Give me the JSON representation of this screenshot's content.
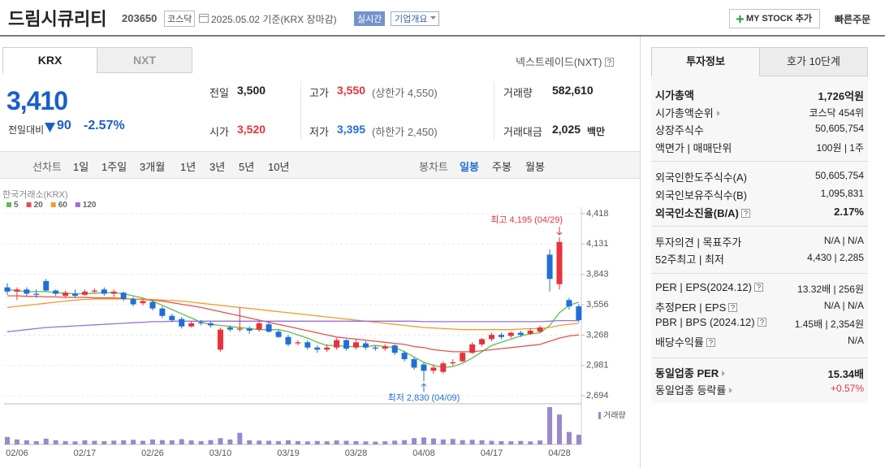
{
  "header": {
    "title": "드림시큐리티",
    "code": "203650",
    "market": "코스닥",
    "date": "2025.05.02",
    "basis": "기준(KRX 장마감)",
    "realtime": "실시간",
    "company_info": "기업개요",
    "mystock": "MY STOCK 추가",
    "quick_order": "빠른주문"
  },
  "price_panel": {
    "tabs": [
      "KRX",
      "NXT"
    ],
    "nxt_link": "넥스트레이드(NXT)",
    "price": "3,410",
    "change_label": "전일대비",
    "change": "90",
    "change_rate": "-2.57%",
    "stats": {
      "prev_close": {
        "label": "전일",
        "value": "3,500"
      },
      "high": {
        "label": "고가",
        "value": "3,550",
        "extra": "(상한가 4,550)"
      },
      "volume": {
        "label": "거래량",
        "value": "582,610"
      },
      "open": {
        "label": "시가",
        "value": "3,520"
      },
      "low": {
        "label": "저가",
        "value": "3,395",
        "extra": "(하한가 2,450)"
      },
      "amount": {
        "label": "거래대금",
        "value": "2,025",
        "unit": "백만"
      }
    }
  },
  "chart_toolbar": {
    "line_chart": "선차트",
    "line_periods": [
      "1일",
      "1주일",
      "3개월",
      "1년",
      "3년",
      "5년",
      "10년"
    ],
    "candle_chart": "봉차트",
    "candle_periods": [
      "일봉",
      "주봉",
      "월봉"
    ]
  },
  "chart_data": {
    "type": "candlestick",
    "exchange_label": "한국거래소(KRX)",
    "categories": [
      null,
      "02/06",
      null,
      null,
      null,
      null,
      null,
      null,
      "02/17",
      null,
      null,
      null,
      null,
      null,
      null,
      "02/26",
      null,
      null,
      null,
      null,
      null,
      null,
      "03/10",
      null,
      null,
      null,
      null,
      null,
      null,
      "03/19",
      null,
      null,
      null,
      null,
      null,
      null,
      "03/28",
      null,
      null,
      null,
      null,
      null,
      null,
      "04/08",
      null,
      null,
      null,
      null,
      null,
      null,
      "04/17",
      null,
      null,
      null,
      null,
      null,
      null,
      "04/28",
      null,
      null
    ],
    "open": [
      3720,
      3680,
      3700,
      3660,
      3780,
      3690,
      3640,
      3660,
      3650,
      3680,
      3700,
      3660,
      3670,
      3610,
      3570,
      3580,
      3520,
      3450,
      3420,
      3350,
      3390,
      3380,
      3130,
      3340,
      3320,
      3330,
      3320,
      3370,
      3300,
      3250,
      3190,
      3200,
      3150,
      3130,
      3150,
      3220,
      3150,
      3190,
      3150,
      3140,
      3170,
      3100,
      3040,
      2990,
      2930,
      2920,
      3000,
      3020,
      3100,
      3180,
      3230,
      3270,
      3260,
      3290,
      3280,
      3300,
      4030,
      3750,
      3600,
      3540
    ],
    "high": [
      3760,
      3720,
      3720,
      3700,
      3800,
      3700,
      3690,
      3700,
      3700,
      3710,
      3720,
      3700,
      3680,
      3630,
      3610,
      3600,
      3540,
      3470,
      3440,
      3400,
      3410,
      3400,
      3340,
      3360,
      3530,
      3350,
      3400,
      3390,
      3320,
      3270,
      3220,
      3220,
      3170,
      3180,
      3240,
      3230,
      3230,
      3210,
      3170,
      3180,
      3180,
      3120,
      3060,
      3010,
      2990,
      3020,
      3040,
      3110,
      3200,
      3240,
      3290,
      3290,
      3300,
      3310,
      3330,
      3360,
      4080,
      4195,
      3620,
      3560
    ],
    "low": [
      3650,
      3600,
      3640,
      3620,
      3680,
      3640,
      3620,
      3620,
      3640,
      3660,
      3640,
      3630,
      3590,
      3540,
      3550,
      3500,
      3430,
      3390,
      3330,
      3340,
      3360,
      3340,
      3110,
      3300,
      3300,
      3280,
      3300,
      3290,
      3240,
      3160,
      3170,
      3130,
      3100,
      3110,
      3130,
      3120,
      3130,
      3130,
      3120,
      3120,
      3080,
      3020,
      2940,
      2830,
      2900,
      2900,
      2980,
      3010,
      3090,
      3160,
      3210,
      3230,
      3240,
      3250,
      3270,
      3290,
      3680,
      3700,
      3510,
      3390
    ],
    "close": [
      3680,
      3700,
      3660,
      3650,
      3690,
      3660,
      3670,
      3640,
      3680,
      3690,
      3660,
      3680,
      3610,
      3560,
      3590,
      3520,
      3450,
      3410,
      3350,
      3380,
      3380,
      3360,
      3320,
      3320,
      3330,
      3310,
      3380,
      3300,
      3250,
      3180,
      3200,
      3150,
      3130,
      3150,
      3220,
      3140,
      3200,
      3150,
      3140,
      3160,
      3100,
      3040,
      2960,
      2930,
      2960,
      3000,
      3010,
      3100,
      3180,
      3230,
      3270,
      3250,
      3290,
      3270,
      3310,
      3340,
      3800,
      4150,
      3540,
      3410
    ],
    "up_color": "#e8323c",
    "down_color": "#1f6fd6",
    "ylim": [
      2694,
      4418
    ],
    "yticks": [
      {
        "value": 4418,
        "label": "4,418"
      },
      {
        "value": 4131,
        "label": "4,131"
      },
      {
        "value": 3843,
        "label": "3,843"
      },
      {
        "value": 3556,
        "label": "3,556"
      },
      {
        "value": 3268,
        "label": "3,268"
      },
      {
        "value": 2981,
        "label": "2,981"
      },
      {
        "value": 2694,
        "label": "2,694"
      }
    ],
    "grid": true,
    "moving_averages": [
      {
        "name": "5",
        "color": "#5cbf4e",
        "values": [
          3700,
          3690,
          3680,
          3680,
          3680,
          3670,
          3665,
          3660,
          3660,
          3665,
          3670,
          3670,
          3660,
          3640,
          3620,
          3590,
          3550,
          3510,
          3470,
          3430,
          3390,
          3370,
          3360,
          3350,
          3340,
          3330,
          3320,
          3320,
          3320,
          3300,
          3270,
          3240,
          3200,
          3170,
          3170,
          3160,
          3160,
          3160,
          3170,
          3160,
          3150,
          3110,
          3060,
          3010,
          2980,
          2960,
          2970,
          3000,
          3050,
          3110,
          3170,
          3200,
          3230,
          3260,
          3280,
          3290,
          3360,
          3480,
          3550,
          3580
        ]
      },
      {
        "name": "20",
        "color": "#e8504c",
        "values": [
          3640,
          3640,
          3635,
          3635,
          3630,
          3630,
          3625,
          3625,
          3625,
          3620,
          3620,
          3620,
          3615,
          3610,
          3605,
          3600,
          3590,
          3575,
          3560,
          3545,
          3530,
          3510,
          3490,
          3470,
          3450,
          3430,
          3410,
          3390,
          3370,
          3350,
          3330,
          3310,
          3290,
          3270,
          3250,
          3240,
          3230,
          3220,
          3210,
          3200,
          3190,
          3180,
          3160,
          3150,
          3130,
          3120,
          3110,
          3110,
          3110,
          3120,
          3130,
          3140,
          3150,
          3160,
          3170,
          3180,
          3210,
          3240,
          3260,
          3270
        ]
      },
      {
        "name": "60",
        "color": "#f39a2b",
        "values": [
          3530,
          3540,
          3550,
          3560,
          3570,
          3580,
          3590,
          3600,
          3605,
          3610,
          3610,
          3610,
          3610,
          3610,
          3610,
          3605,
          3600,
          3595,
          3590,
          3580,
          3570,
          3560,
          3550,
          3540,
          3530,
          3520,
          3510,
          3500,
          3490,
          3480,
          3470,
          3460,
          3450,
          3440,
          3430,
          3420,
          3410,
          3400,
          3390,
          3380,
          3370,
          3360,
          3350,
          3340,
          3335,
          3330,
          3325,
          3320,
          3320,
          3320,
          3320,
          3320,
          3320,
          3325,
          3330,
          3330,
          3340,
          3360,
          3370,
          3380
        ]
      },
      {
        "name": "120",
        "color": "#9b6fd6",
        "values": [
          3300,
          3310,
          3320,
          3330,
          3340,
          3345,
          3350,
          3355,
          3360,
          3365,
          3370,
          3375,
          3380,
          3385,
          3390,
          3395,
          3395,
          3400,
          3400,
          3400,
          3400,
          3400,
          3400,
          3400,
          3400,
          3400,
          3400,
          3400,
          3400,
          3400,
          3400,
          3400,
          3400,
          3400,
          3400,
          3400,
          3400,
          3400,
          3400,
          3400,
          3400,
          3400,
          3400,
          3395,
          3395,
          3395,
          3395,
          3395,
          3395,
          3395,
          3395,
          3395,
          3395,
          3395,
          3395,
          3395,
          3400,
          3405,
          3405,
          3405
        ]
      }
    ],
    "annotations": {
      "high": "최고 4,195 (04/29)",
      "low": "최저 2,830 (04/09)"
    },
    "volume": {
      "label": "거래량",
      "color": "#9a88cc",
      "ylim": [
        0,
        2300000
      ],
      "values": [
        450000,
        300000,
        250000,
        200000,
        350000,
        250000,
        200000,
        180000,
        250000,
        220000,
        200000,
        230000,
        250000,
        280000,
        220000,
        300000,
        260000,
        250000,
        320000,
        240000,
        200000,
        260000,
        380000,
        300000,
        700000,
        250000,
        230000,
        220000,
        200000,
        250000,
        200000,
        180000,
        210000,
        190000,
        240000,
        220000,
        200000,
        180000,
        170000,
        190000,
        230000,
        260000,
        380000,
        420000,
        360000,
        300000,
        330000,
        260000,
        280000,
        250000,
        220000,
        200000,
        190000,
        210000,
        180000,
        240000,
        2250000,
        1800000,
        750000,
        582610
      ]
    }
  },
  "investment_info": {
    "tabs": [
      "투자정보",
      "호가 10단계"
    ],
    "rows": [
      {
        "label": "시가총액",
        "value": "1,726억원"
      },
      {
        "label": "시가총액순위",
        "value": "코스닥 454위"
      },
      {
        "label": "상장주식수",
        "value": "50,605,754"
      },
      {
        "label": "액면가 | 매매단위",
        "value": "100원 | 1주"
      },
      {
        "label": "외국인한도주식수(A)",
        "value": "50,605,754"
      },
      {
        "label": "외국인보유주식수(B)",
        "value": "1,095,831"
      },
      {
        "label": "외국인소진율(B/A)",
        "value": "2.17%"
      },
      {
        "label": "투자의견 | 목표주가",
        "value": "N/A | N/A"
      },
      {
        "label": "52주최고 | 최저",
        "value": "4,430 | 2,285"
      },
      {
        "label": "PER | EPS(2024.12)",
        "value": "13.32배 | 256원"
      },
      {
        "label": "추정PER | EPS",
        "value": "N/A | N/A"
      },
      {
        "label": "PBR | BPS (2024.12)",
        "value": "1.45배 | 2,354원"
      },
      {
        "label": "배당수익률",
        "value": "N/A"
      },
      {
        "label": "동일업종 PER",
        "value": "15.34배"
      },
      {
        "label": "동일업종 등락률",
        "value": "+0.57%"
      }
    ]
  }
}
